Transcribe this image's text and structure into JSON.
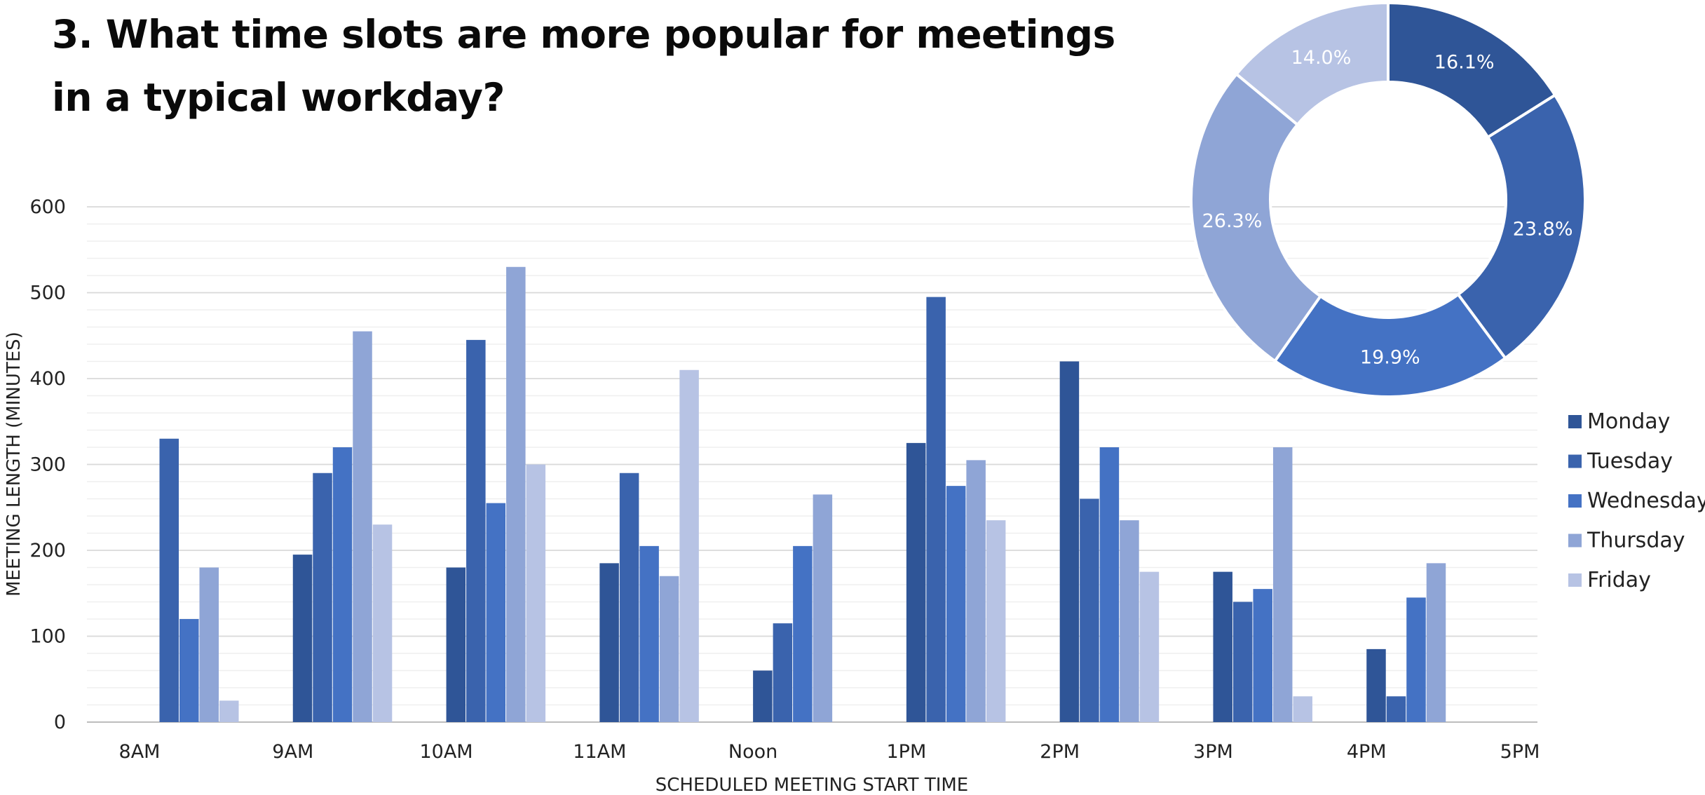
{
  "title_lines": [
    "3. What time slots are more popular for meetings",
    "in a typical workday?"
  ],
  "chart_data": [
    {
      "type": "bar",
      "xlabel": "SCHEDULED MEETING START TIME",
      "ylabel": "MEETING LENGTH (MINUTES)",
      "ylim": [
        0,
        600
      ],
      "yticks": [
        0,
        100,
        200,
        300,
        400,
        500,
        600
      ],
      "grid": true,
      "legend_position": "right",
      "categories": [
        "8AM",
        "9AM",
        "10AM",
        "11AM",
        "Noon",
        "1PM",
        "2PM",
        "3PM",
        "4PM",
        "5PM"
      ],
      "series": [
        {
          "name": "Monday",
          "color": "#2f5597",
          "values": [
            0,
            195,
            180,
            185,
            60,
            325,
            420,
            175,
            85,
            0
          ]
        },
        {
          "name": "Tuesday",
          "color": "#3a63ad",
          "values": [
            330,
            290,
            445,
            290,
            115,
            495,
            260,
            140,
            30,
            0
          ]
        },
        {
          "name": "Wednesday",
          "color": "#4472c4",
          "values": [
            120,
            320,
            255,
            205,
            205,
            275,
            320,
            155,
            145,
            0
          ]
        },
        {
          "name": "Thursday",
          "color": "#8fa5d6",
          "values": [
            180,
            455,
            530,
            170,
            265,
            305,
            235,
            320,
            185,
            0
          ]
        },
        {
          "name": "Friday",
          "color": "#b7c3e4",
          "values": [
            25,
            230,
            300,
            410,
            0,
            235,
            175,
            30,
            0,
            0
          ]
        }
      ]
    },
    {
      "type": "pie",
      "donut": true,
      "labels": [
        "Monday",
        "Tuesday",
        "Wednesday",
        "Thursday",
        "Friday"
      ],
      "values": [
        16.1,
        23.8,
        19.9,
        26.3,
        14.0
      ],
      "value_labels": [
        "16.1%",
        "23.8%",
        "19.9%",
        "26.3%",
        "14.0%"
      ],
      "colors": [
        "#2f5597",
        "#3a63ad",
        "#4472c4",
        "#8fa5d6",
        "#b7c3e4"
      ]
    }
  ]
}
